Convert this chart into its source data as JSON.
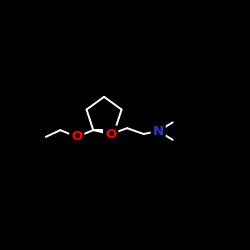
{
  "background_color": "#000000",
  "bond_color": "#ffffff",
  "atom_colors": {
    "O": "#ff0000",
    "N": "#3333cc",
    "C": "#ffffff"
  },
  "font_size": 9.5,
  "bond_width": 1.4,
  "figsize": [
    2.5,
    2.5
  ],
  "dpi": 100,
  "xlim": [
    0,
    10
  ],
  "ylim": [
    2,
    8
  ]
}
